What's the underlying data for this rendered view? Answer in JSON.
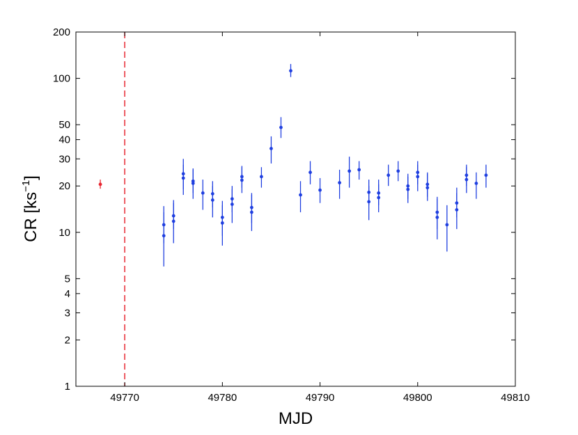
{
  "chart_data": {
    "type": "scatter",
    "xlabel": "MJD",
    "ylabel_main": "CR [ks",
    "ylabel_sup": "−1",
    "ylabel_close": "]",
    "xlim": [
      49765,
      49810
    ],
    "ylim": [
      1,
      200
    ],
    "y_scale": "log",
    "grid": false,
    "x_ticks": [
      49770,
      49780,
      49790,
      49800,
      49810
    ],
    "y_ticks": [
      1,
      2,
      3,
      4,
      5,
      10,
      20,
      30,
      40,
      50,
      100,
      200
    ],
    "vertical_line": {
      "x": 49770,
      "color": "#e8252f",
      "style": "dashed"
    },
    "colors": {
      "main": "#1f3fe0",
      "reference": "#e8252f"
    },
    "series": [
      {
        "color": "#e8252f",
        "points": [
          {
            "x": 49767.5,
            "y": 20.5,
            "lo": 19.2,
            "hi": 22.0
          }
        ]
      },
      {
        "color": "#1f3fe0",
        "points": [
          {
            "x": 49774.0,
            "y": 9.5,
            "lo": 6.0,
            "hi": 13.5
          },
          {
            "x": 49774.0,
            "y": 11.2,
            "lo": 8.5,
            "hi": 14.8
          },
          {
            "x": 49775.0,
            "y": 11.8,
            "lo": 8.5,
            "hi": 15.5
          },
          {
            "x": 49775.0,
            "y": 12.8,
            "lo": 10.5,
            "hi": 16.2
          },
          {
            "x": 49776.0,
            "y": 22.5,
            "lo": 17.5,
            "hi": 27.5
          },
          {
            "x": 49776.0,
            "y": 24.0,
            "lo": 19.0,
            "hi": 30.0
          },
          {
            "x": 49777.0,
            "y": 20.8,
            "lo": 16.5,
            "hi": 25.5
          },
          {
            "x": 49777.0,
            "y": 21.5,
            "lo": 18.0,
            "hi": 26.0
          },
          {
            "x": 49778.0,
            "y": 18.0,
            "lo": 14.0,
            "hi": 22.0
          },
          {
            "x": 49779.0,
            "y": 16.2,
            "lo": 12.5,
            "hi": 20.0
          },
          {
            "x": 49779.0,
            "y": 17.8,
            "lo": 14.5,
            "hi": 21.5
          },
          {
            "x": 49780.0,
            "y": 11.5,
            "lo": 8.2,
            "hi": 15.0
          },
          {
            "x": 49780.0,
            "y": 12.5,
            "lo": 9.5,
            "hi": 16.0
          },
          {
            "x": 49781.0,
            "y": 15.2,
            "lo": 11.5,
            "hi": 19.0
          },
          {
            "x": 49781.0,
            "y": 16.5,
            "lo": 13.5,
            "hi": 20.0
          },
          {
            "x": 49782.0,
            "y": 21.8,
            "lo": 18.0,
            "hi": 26.5
          },
          {
            "x": 49782.0,
            "y": 23.0,
            "lo": 19.5,
            "hi": 27.0
          },
          {
            "x": 49783.0,
            "y": 13.5,
            "lo": 10.2,
            "hi": 17.5
          },
          {
            "x": 49783.0,
            "y": 14.5,
            "lo": 11.5,
            "hi": 18.0
          },
          {
            "x": 49784.0,
            "y": 23.0,
            "lo": 19.5,
            "hi": 26.5
          },
          {
            "x": 49785.0,
            "y": 35.0,
            "lo": 28.0,
            "hi": 42.0
          },
          {
            "x": 49786.0,
            "y": 48.0,
            "lo": 41.0,
            "hi": 56.0
          },
          {
            "x": 49787.0,
            "y": 112.0,
            "lo": 102.0,
            "hi": 124.0
          },
          {
            "x": 49788.0,
            "y": 17.5,
            "lo": 13.5,
            "hi": 21.5
          },
          {
            "x": 49789.0,
            "y": 24.5,
            "lo": 20.5,
            "hi": 29.0
          },
          {
            "x": 49790.0,
            "y": 18.8,
            "lo": 15.5,
            "hi": 22.5
          },
          {
            "x": 49792.0,
            "y": 21.0,
            "lo": 16.5,
            "hi": 25.5
          },
          {
            "x": 49793.0,
            "y": 25.0,
            "lo": 19.5,
            "hi": 31.0
          },
          {
            "x": 49794.0,
            "y": 25.5,
            "lo": 22.0,
            "hi": 29.0
          },
          {
            "x": 49795.0,
            "y": 15.8,
            "lo": 12.0,
            "hi": 20.0
          },
          {
            "x": 49795.0,
            "y": 18.2,
            "lo": 15.0,
            "hi": 22.0
          },
          {
            "x": 49796.0,
            "y": 16.8,
            "lo": 13.5,
            "hi": 20.5
          },
          {
            "x": 49796.0,
            "y": 18.0,
            "lo": 15.0,
            "hi": 22.0
          },
          {
            "x": 49797.0,
            "y": 23.5,
            "lo": 20.0,
            "hi": 27.5
          },
          {
            "x": 49798.0,
            "y": 25.0,
            "lo": 21.5,
            "hi": 29.0
          },
          {
            "x": 49799.0,
            "y": 19.0,
            "lo": 15.5,
            "hi": 23.0
          },
          {
            "x": 49799.0,
            "y": 20.0,
            "lo": 16.5,
            "hi": 24.0
          },
          {
            "x": 49800.0,
            "y": 23.0,
            "lo": 18.5,
            "hi": 27.5
          },
          {
            "x": 49800.0,
            "y": 24.5,
            "lo": 20.5,
            "hi": 29.0
          },
          {
            "x": 49801.0,
            "y": 19.5,
            "lo": 16.0,
            "hi": 24.0
          },
          {
            "x": 49801.0,
            "y": 20.5,
            "lo": 17.0,
            "hi": 24.5
          },
          {
            "x": 49802.0,
            "y": 12.5,
            "lo": 9.0,
            "hi": 16.5
          },
          {
            "x": 49802.0,
            "y": 13.5,
            "lo": 10.5,
            "hi": 17.0
          },
          {
            "x": 49803.0,
            "y": 11.2,
            "lo": 7.5,
            "hi": 15.0
          },
          {
            "x": 49804.0,
            "y": 14.0,
            "lo": 10.5,
            "hi": 18.0
          },
          {
            "x": 49804.0,
            "y": 15.5,
            "lo": 12.5,
            "hi": 19.5
          },
          {
            "x": 49805.0,
            "y": 22.0,
            "lo": 18.0,
            "hi": 26.5
          },
          {
            "x": 49805.0,
            "y": 23.5,
            "lo": 20.0,
            "hi": 27.5
          },
          {
            "x": 49806.0,
            "y": 20.8,
            "lo": 16.5,
            "hi": 24.5
          },
          {
            "x": 49807.0,
            "y": 23.5,
            "lo": 19.5,
            "hi": 27.5
          }
        ]
      }
    ]
  }
}
